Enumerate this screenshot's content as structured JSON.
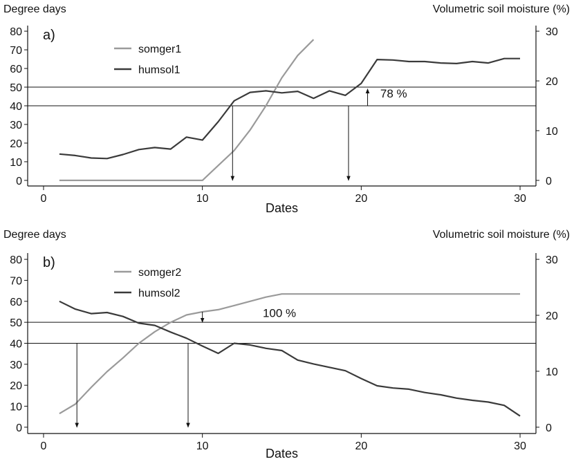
{
  "chart_data": [
    {
      "type": "line",
      "panel_label": "a)",
      "ylabel_left": "Degree days",
      "ylabel_right": "Volumetric soil moisture (%)",
      "xlabel": "Dates",
      "xlim": [
        -1,
        31
      ],
      "ylim_left": [
        -3,
        83
      ],
      "ylim_right": [
        -1.125,
        31.125
      ],
      "xticks": [
        0,
        10,
        20,
        30
      ],
      "yticks_left": [
        0,
        10,
        20,
        30,
        40,
        50,
        60,
        70,
        80
      ],
      "yticks_right": [
        0,
        10,
        20,
        30
      ],
      "series": [
        {
          "name": "somger1",
          "axis": "left",
          "color": "#9a9a9a",
          "x": [
            1,
            2,
            3,
            4,
            5,
            6,
            7,
            8,
            9,
            10,
            11,
            12,
            13,
            14,
            15,
            16,
            17
          ],
          "y": [
            0,
            0,
            0,
            0,
            0,
            0,
            0,
            0,
            0,
            0,
            8,
            16,
            27,
            40,
            55,
            67,
            75.5
          ]
        },
        {
          "name": "humsol1",
          "axis": "right",
          "color": "#3a3a3a",
          "x": [
            1,
            2,
            3,
            4,
            5,
            6,
            7,
            8,
            9,
            10,
            11,
            12,
            13,
            14,
            15,
            16,
            17,
            18,
            19,
            20,
            21,
            22,
            23,
            24,
            25,
            26,
            27,
            28,
            29,
            30
          ],
          "y": [
            5.3,
            5.0,
            4.5,
            4.4,
            5.2,
            6.2,
            6.6,
            6.3,
            8.7,
            8.1,
            11.8,
            16.0,
            17.7,
            18.0,
            17.6,
            17.9,
            16.5,
            18.0,
            17.1,
            19.5,
            24.3,
            24.2,
            23.9,
            23.9,
            23.6,
            23.5,
            23.9,
            23.6,
            24.5,
            24.5
          ]
        }
      ],
      "hlines_left": [
        40,
        50
      ],
      "arrows": [
        {
          "x": 11.9,
          "from": 40,
          "to": 0,
          "axis": "left"
        },
        {
          "x": 19.2,
          "from": 40,
          "to": 0,
          "axis": "left"
        },
        {
          "x": 20.4,
          "from": 40,
          "to": 49,
          "axis": "left"
        }
      ],
      "annotation": {
        "text": "78 %",
        "x": 21.2,
        "y": 44.5
      },
      "legend": "top-left"
    },
    {
      "type": "line",
      "panel_label": "b)",
      "ylabel_left": "Degree days",
      "ylabel_right": "Volumetric soil moisture (%)",
      "xlabel": "Dates",
      "xlim": [
        -1,
        31
      ],
      "ylim_left": [
        -3,
        83
      ],
      "ylim_right": [
        -1.125,
        31.125
      ],
      "xticks": [
        0,
        10,
        20,
        30
      ],
      "yticks_left": [
        0,
        10,
        20,
        30,
        40,
        50,
        60,
        70,
        80
      ],
      "yticks_right": [
        0,
        10,
        20,
        30
      ],
      "series": [
        {
          "name": "somger2",
          "axis": "left",
          "color": "#9a9a9a",
          "x": [
            1,
            2,
            3,
            4,
            5,
            6,
            7,
            8,
            9,
            10,
            11,
            12,
            13,
            14,
            15,
            16,
            17,
            18,
            19,
            20,
            21,
            22,
            23,
            24,
            25,
            26,
            27,
            28,
            29,
            30
          ],
          "y": [
            6.5,
            11,
            19,
            26.5,
            33,
            40,
            45.5,
            50,
            53.5,
            55,
            56,
            58,
            60,
            62,
            63.5,
            63.5,
            63.5,
            63.5,
            63.5,
            63.5,
            63.5,
            63.5,
            63.5,
            63.5,
            63.5,
            63.5,
            63.5,
            63.5,
            63.5,
            63.5
          ]
        },
        {
          "name": "humsol2",
          "axis": "right",
          "color": "#3a3a3a",
          "x": [
            1,
            2,
            3,
            4,
            5,
            6,
            7,
            8,
            9,
            10,
            11,
            12,
            13,
            14,
            15,
            16,
            17,
            18,
            19,
            20,
            21,
            22,
            23,
            24,
            25,
            26,
            27,
            28,
            29,
            30
          ],
          "y": [
            22.5,
            21.1,
            20.3,
            20.5,
            19.8,
            18.6,
            18.2,
            17.0,
            15.9,
            14.5,
            13.2,
            15.0,
            14.7,
            14.1,
            13.7,
            12.0,
            11.3,
            10.7,
            10.1,
            8.7,
            7.4,
            7.0,
            6.8,
            6.2,
            5.8,
            5.2,
            4.8,
            4.5,
            3.9,
            2.0
          ]
        }
      ],
      "hlines_left": [
        40,
        50
      ],
      "arrows": [
        {
          "x": 2.1,
          "from": 40,
          "to": 0,
          "axis": "left"
        },
        {
          "x": 9.1,
          "from": 40,
          "to": 0,
          "axis": "left"
        },
        {
          "x": 10.0,
          "from": 55,
          "to": 50,
          "axis": "left"
        }
      ],
      "annotation": {
        "text": "100 %",
        "x": 13.8,
        "y": 52.5
      },
      "legend": "top-left"
    }
  ]
}
